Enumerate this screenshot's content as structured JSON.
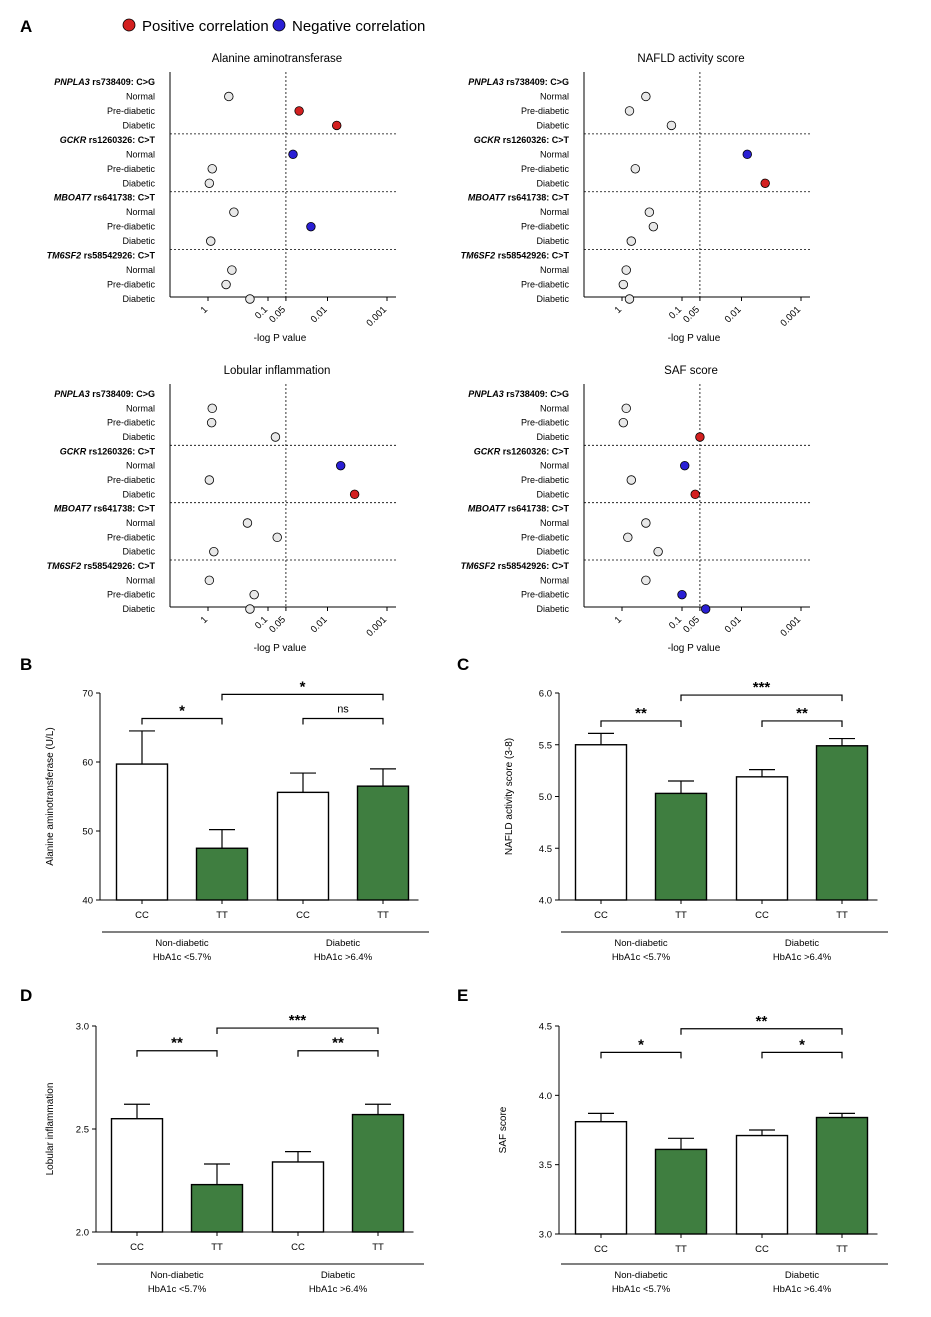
{
  "panel_letters": {
    "a": "A",
    "b": "B",
    "c": "C",
    "d": "D",
    "e": "E"
  },
  "legend": {
    "positive": {
      "label": "Positive correlation",
      "color": "#d32020"
    },
    "negative": {
      "label": "Negative correlation",
      "color": "#2a1fd4"
    },
    "neutral_color": "#e8e8e8"
  },
  "chart_data": [
    {
      "id": "A1",
      "type": "scatter",
      "title": "Alanine aminotransferase",
      "xlabel": "-log P value",
      "xscale": "log-reciprocal",
      "xticks": [
        "1",
        "0.1",
        "0.05",
        "0.01",
        "0.001"
      ],
      "reference_line": 0.05,
      "groups": [
        {
          "gene": "PNPLA3",
          "rest": " rs738409: C>G",
          "items": [
            {
              "label": "Normal",
              "p": 0.45,
              "corr": "none"
            },
            {
              "label": "Pre-diabetic",
              "p": 0.03,
              "corr": "positive"
            },
            {
              "label": "Diabetic",
              "p": 0.007,
              "corr": "positive"
            }
          ]
        },
        {
          "gene": "GCKR",
          "rest": " rs1260326: C>T",
          "items": [
            {
              "label": "Normal",
              "p": 0.038,
              "corr": "negative"
            },
            {
              "label": "Pre-diabetic",
              "p": 0.85,
              "corr": "none"
            },
            {
              "label": "Diabetic",
              "p": 0.95,
              "corr": "none"
            }
          ]
        },
        {
          "gene": "MBOAT7",
          "rest": " rs641738: C>T",
          "items": [
            {
              "label": "Normal",
              "p": 0.37,
              "corr": "none"
            },
            {
              "label": "Pre-diabetic",
              "p": 0.019,
              "corr": "negative"
            },
            {
              "label": "Diabetic",
              "p": 0.9,
              "corr": "none"
            }
          ]
        },
        {
          "gene": "TM6SF2",
          "rest": " rs58542926: C>T",
          "items": [
            {
              "label": "Normal",
              "p": 0.4,
              "corr": "none"
            },
            {
              "label": "Pre-diabetic",
              "p": 0.5,
              "corr": "none"
            },
            {
              "label": "Diabetic",
              "p": 0.2,
              "corr": "none"
            }
          ]
        }
      ]
    },
    {
      "id": "A2",
      "type": "scatter",
      "title": "NAFLD activity score",
      "xlabel": "-log P value",
      "xscale": "log-reciprocal",
      "xticks": [
        "1",
        "0.1",
        "0.05",
        "0.01",
        "0.001"
      ],
      "reference_line": 0.05,
      "groups": [
        {
          "gene": "PNPLA3",
          "rest": " rs738409: C>G",
          "items": [
            {
              "label": "Normal",
              "p": 0.4,
              "corr": "none"
            },
            {
              "label": "Pre-diabetic",
              "p": 0.75,
              "corr": "none"
            },
            {
              "label": "Diabetic",
              "p": 0.15,
              "corr": "none"
            }
          ]
        },
        {
          "gene": "GCKR",
          "rest": " rs1260326: C>T",
          "items": [
            {
              "label": "Normal",
              "p": 0.008,
              "corr": "negative"
            },
            {
              "label": "Pre-diabetic",
              "p": 0.6,
              "corr": "none"
            },
            {
              "label": "Diabetic",
              "p": 0.004,
              "corr": "positive"
            }
          ]
        },
        {
          "gene": "MBOAT7",
          "rest": " rs641738: C>T",
          "items": [
            {
              "label": "Normal",
              "p": 0.35,
              "corr": "none"
            },
            {
              "label": "Pre-diabetic",
              "p": 0.3,
              "corr": "none"
            },
            {
              "label": "Diabetic",
              "p": 0.7,
              "corr": "none"
            }
          ]
        },
        {
          "gene": "TM6SF2",
          "rest": " rs58542926: C>T",
          "items": [
            {
              "label": "Normal",
              "p": 0.85,
              "corr": "none"
            },
            {
              "label": "Pre-diabetic",
              "p": 0.95,
              "corr": "none"
            },
            {
              "label": "Diabetic",
              "p": 0.75,
              "corr": "none"
            }
          ]
        }
      ]
    },
    {
      "id": "A3",
      "type": "scatter",
      "title": "Lobular inflammation",
      "xlabel": "-log P value",
      "xscale": "log-reciprocal",
      "xticks": [
        "1",
        "0.1",
        "0.05",
        "0.01",
        "0.001"
      ],
      "reference_line": 0.05,
      "groups": [
        {
          "gene": "PNPLA3",
          "rest": " rs738409: C>G",
          "items": [
            {
              "label": "Normal",
              "p": 0.85,
              "corr": "none"
            },
            {
              "label": "Pre-diabetic",
              "p": 0.87,
              "corr": "none"
            },
            {
              "label": "Diabetic",
              "p": 0.075,
              "corr": "none"
            }
          ]
        },
        {
          "gene": "GCKR",
          "rest": " rs1260326: C>T",
          "items": [
            {
              "label": "Normal",
              "p": 0.006,
              "corr": "negative"
            },
            {
              "label": "Pre-diabetic",
              "p": 0.95,
              "corr": "none"
            },
            {
              "label": "Diabetic",
              "p": 0.0035,
              "corr": "positive"
            }
          ]
        },
        {
          "gene": "MBOAT7",
          "rest": " rs641738: C>T",
          "items": [
            {
              "label": "Normal",
              "p": 0.22,
              "corr": "none"
            },
            {
              "label": "Pre-diabetic",
              "p": 0.07,
              "corr": "none"
            },
            {
              "label": "Diabetic",
              "p": 0.8,
              "corr": "none"
            }
          ]
        },
        {
          "gene": "TM6SF2",
          "rest": " rs58542926: C>T",
          "items": [
            {
              "label": "Normal",
              "p": 0.95,
              "corr": "none"
            },
            {
              "label": "Pre-diabetic",
              "p": 0.17,
              "corr": "none"
            },
            {
              "label": "Diabetic",
              "p": 0.2,
              "corr": "none"
            }
          ]
        }
      ]
    },
    {
      "id": "A4",
      "type": "scatter",
      "title": "SAF score",
      "xlabel": "-log P value",
      "xscale": "log-reciprocal",
      "xticks": [
        "1",
        "0.1",
        "0.05",
        "0.01",
        "0.001"
      ],
      "reference_line": 0.05,
      "groups": [
        {
          "gene": "PNPLA3",
          "rest": " rs738409: C>G",
          "items": [
            {
              "label": "Normal",
              "p": 0.85,
              "corr": "none"
            },
            {
              "label": "Pre-diabetic",
              "p": 0.95,
              "corr": "none"
            },
            {
              "label": "Diabetic",
              "p": 0.05,
              "corr": "positive"
            }
          ]
        },
        {
          "gene": "GCKR",
          "rest": " rs1260326: C>T",
          "items": [
            {
              "label": "Normal",
              "p": 0.09,
              "corr": "negative"
            },
            {
              "label": "Pre-diabetic",
              "p": 0.7,
              "corr": "none"
            },
            {
              "label": "Diabetic",
              "p": 0.06,
              "corr": "positive"
            }
          ]
        },
        {
          "gene": "MBOAT7",
          "rest": " rs641738: C>T",
          "items": [
            {
              "label": "Normal",
              "p": 0.4,
              "corr": "none"
            },
            {
              "label": "Pre-diabetic",
              "p": 0.8,
              "corr": "none"
            },
            {
              "label": "Diabetic",
              "p": 0.25,
              "corr": "none"
            }
          ]
        },
        {
          "gene": "TM6SF2",
          "rest": " rs58542926: C>T",
          "items": [
            {
              "label": "Normal",
              "p": 0.4,
              "corr": "none"
            },
            {
              "label": "Pre-diabetic",
              "p": 0.1,
              "corr": "negative"
            },
            {
              "label": "Diabetic",
              "p": 0.04,
              "corr": "negative"
            }
          ]
        }
      ]
    },
    {
      "id": "B",
      "type": "bar",
      "ylabel": "Alanine aminotransferase (U/L)",
      "ylim": [
        40,
        70
      ],
      "yticks": [
        40,
        50,
        60,
        70
      ],
      "categories": [
        "CC",
        "TT",
        "CC",
        "TT"
      ],
      "values": [
        59.7,
        47.5,
        55.6,
        56.5
      ],
      "errors": [
        4.8,
        2.7,
        2.8,
        2.5
      ],
      "genotype_colors": {
        "CC": "#ffffff",
        "TT": "#3f7e40"
      },
      "groups": [
        {
          "line1": "Non-diabetic",
          "line2": "HbA1c <5.7%"
        },
        {
          "line1": "Diabetic",
          "line2": "HbA1c >6.4%"
        }
      ],
      "comparisons": [
        {
          "from": 0,
          "to": 1,
          "label": "*",
          "y": 66.3
        },
        {
          "from": 2,
          "to": 3,
          "label": "ns",
          "y": 66.3
        },
        {
          "from": 1,
          "to": 3,
          "label": "*",
          "y": 69.8
        }
      ]
    },
    {
      "id": "C",
      "type": "bar",
      "ylabel": "NAFLD activity score (3-8)",
      "ylim": [
        4.0,
        6.0
      ],
      "yticks": [
        "4.0",
        "4.5",
        "5.0",
        "5.5",
        "6.0"
      ],
      "categories": [
        "CC",
        "TT",
        "CC",
        "TT"
      ],
      "values": [
        5.5,
        5.03,
        5.19,
        5.49
      ],
      "errors": [
        0.11,
        0.12,
        0.07,
        0.07
      ],
      "genotype_colors": {
        "CC": "#ffffff",
        "TT": "#3f7e40"
      },
      "groups": [
        {
          "line1": "Non-diabetic",
          "line2": "HbA1c <5.7%"
        },
        {
          "line1": "Diabetic",
          "line2": "HbA1c >6.4%"
        }
      ],
      "comparisons": [
        {
          "from": 0,
          "to": 1,
          "label": "**",
          "y": 5.73
        },
        {
          "from": 2,
          "to": 3,
          "label": "**",
          "y": 5.73
        },
        {
          "from": 1,
          "to": 3,
          "label": "***",
          "y": 5.98
        }
      ]
    },
    {
      "id": "D",
      "type": "bar",
      "ylabel": "Lobular inflammation",
      "ylim": [
        2.0,
        3.0
      ],
      "yticks": [
        "2.0",
        "2.5",
        "3.0"
      ],
      "categories": [
        "CC",
        "TT",
        "CC",
        "TT"
      ],
      "values": [
        2.55,
        2.23,
        2.34,
        2.57
      ],
      "errors": [
        0.07,
        0.1,
        0.05,
        0.05
      ],
      "genotype_colors": {
        "CC": "#ffffff",
        "TT": "#3f7e40"
      },
      "groups": [
        {
          "line1": "Non-diabetic",
          "line2": "HbA1c <5.7%"
        },
        {
          "line1": "Diabetic",
          "line2": "HbA1c >6.4%"
        }
      ],
      "comparisons": [
        {
          "from": 0,
          "to": 1,
          "label": "**",
          "y": 2.88
        },
        {
          "from": 2,
          "to": 3,
          "label": "**",
          "y": 2.88
        },
        {
          "from": 1,
          "to": 3,
          "label": "***",
          "y": 2.99
        }
      ]
    },
    {
      "id": "E",
      "type": "bar",
      "ylabel": "SAF score",
      "ylim": [
        3.0,
        4.5
      ],
      "yticks": [
        "3.0",
        "3.5",
        "4.0",
        "4.5"
      ],
      "categories": [
        "CC",
        "TT",
        "CC",
        "TT"
      ],
      "values": [
        3.81,
        3.61,
        3.71,
        3.84
      ],
      "errors": [
        0.06,
        0.08,
        0.04,
        0.03
      ],
      "genotype_colors": {
        "CC": "#ffffff",
        "TT": "#3f7e40"
      },
      "groups": [
        {
          "line1": "Non-diabetic",
          "line2": "HbA1c <5.7%"
        },
        {
          "line1": "Diabetic",
          "line2": "HbA1c >6.4%"
        }
      ],
      "comparisons": [
        {
          "from": 0,
          "to": 1,
          "label": "*",
          "y": 4.31
        },
        {
          "from": 2,
          "to": 3,
          "label": "*",
          "y": 4.31
        },
        {
          "from": 1,
          "to": 3,
          "label": "**",
          "y": 4.48
        }
      ]
    }
  ]
}
